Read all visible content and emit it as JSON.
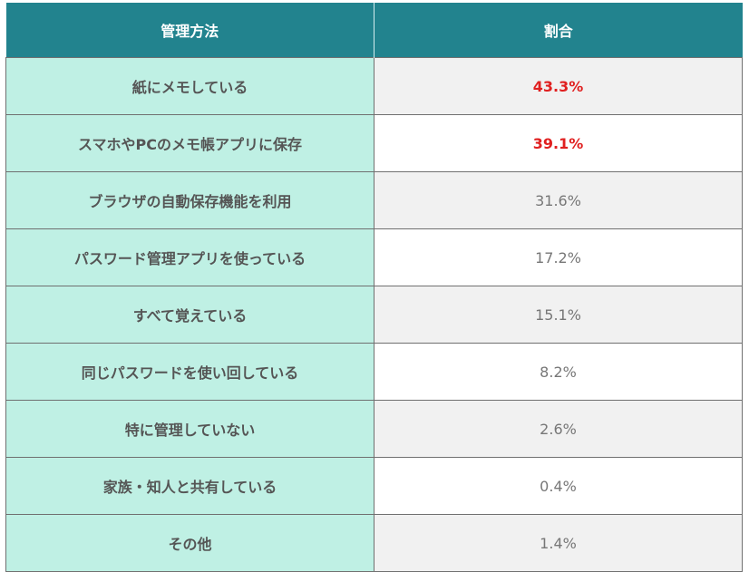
{
  "table": {
    "headers": [
      "管理方法",
      "割合"
    ],
    "header_color": "#22838e",
    "highlight_color": "#e02020",
    "rows": [
      {
        "method": "紙にメモしている",
        "ratio": "43.3%",
        "highlight": true
      },
      {
        "method": "スマホやPCのメモ帳アプリに保存",
        "ratio": "39.1%",
        "highlight": true
      },
      {
        "method": "ブラウザの自動保存機能を利用",
        "ratio": "31.6%",
        "highlight": false
      },
      {
        "method": "パスワード管理アプリを使っている",
        "ratio": "17.2%",
        "highlight": false
      },
      {
        "method": "すべて覚えている",
        "ratio": "15.1%",
        "highlight": false
      },
      {
        "method": "同じパスワードを使い回している",
        "ratio": "8.2%",
        "highlight": false
      },
      {
        "method": "特に管理していない",
        "ratio": "2.6%",
        "highlight": false
      },
      {
        "method": "家族・知人と共有している",
        "ratio": "0.4%",
        "highlight": false
      },
      {
        "method": "その他",
        "ratio": "1.4%",
        "highlight": false
      }
    ]
  }
}
